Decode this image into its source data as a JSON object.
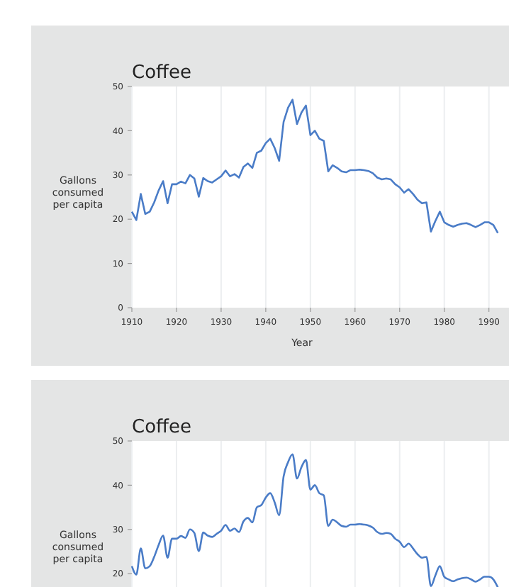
{
  "chart_data": [
    {
      "type": "line",
      "title": "Coffee",
      "xlabel": "Year",
      "ylabel": "Gallons consumed per capita",
      "xlim": [
        1910,
        1994.5
      ],
      "xticks": [
        1910,
        1920,
        1930,
        1940,
        1950,
        1960,
        1970,
        1980,
        1990
      ],
      "ylim": [
        0,
        50
      ],
      "yticks": [
        0,
        10,
        20,
        30,
        40,
        50
      ],
      "grid": "x",
      "x": [
        1910,
        1911,
        1912,
        1913,
        1914,
        1915,
        1916,
        1917,
        1918,
        1919,
        1920,
        1921,
        1922,
        1923,
        1924,
        1925,
        1926,
        1927,
        1928,
        1929,
        1930,
        1931,
        1932,
        1933,
        1934,
        1935,
        1936,
        1937,
        1938,
        1939,
        1940,
        1941,
        1942,
        1943,
        1944,
        1945,
        1946,
        1947,
        1948,
        1949,
        1950,
        1951,
        1952,
        1953,
        1954,
        1955,
        1956,
        1957,
        1958,
        1959,
        1960,
        1961,
        1962,
        1963,
        1964,
        1965,
        1966,
        1967,
        1968,
        1969,
        1970,
        1971,
        1972,
        1973,
        1974,
        1975,
        1976,
        1977,
        1978,
        1979,
        1980,
        1981,
        1982,
        1983,
        1984,
        1985,
        1986,
        1987,
        1988,
        1989,
        1990,
        1991,
        1992
      ],
      "series": [
        {
          "color": "#4a7cc7",
          "values": [
            21.7,
            19.8,
            25.7,
            21.2,
            21.7,
            23.8,
            26.5,
            28.6,
            23.6,
            27.9,
            27.9,
            28.5,
            28.1,
            30.0,
            29.2,
            25.1,
            29.3,
            28.6,
            28.3,
            29.0,
            29.7,
            31.0,
            29.7,
            30.2,
            29.4,
            31.8,
            32.6,
            31.6,
            35.0,
            35.5,
            37.2,
            38.2,
            36.1,
            33.2,
            42.0,
            45.2,
            47.0,
            41.5,
            44.1,
            45.7,
            39.0,
            40.0,
            38.2,
            37.7,
            30.8,
            32.2,
            31.6,
            30.8,
            30.6,
            31.1,
            31.1,
            31.2,
            31.1,
            30.9,
            30.4,
            29.4,
            29.0,
            29.2,
            29.0,
            27.9,
            27.2,
            26.0,
            26.8,
            25.7,
            24.4,
            23.6,
            23.8,
            17.2,
            19.6,
            21.7,
            19.3,
            18.7,
            18.3,
            18.7,
            19.0,
            19.1,
            18.7,
            18.2,
            18.7,
            19.3,
            19.3,
            18.7,
            16.9
          ]
        }
      ]
    },
    {
      "type": "line",
      "title": "Coffee",
      "ylabel": "Gallons consumed per capita",
      "xlim": [
        1910,
        1994.5
      ],
      "ylim": [
        0,
        50
      ],
      "yticks": [
        20,
        30,
        40,
        50
      ],
      "grid": "x",
      "tick_labels": "y",
      "x": [
        1910,
        1911,
        1912,
        1913,
        1914,
        1915,
        1916,
        1917,
        1918,
        1919,
        1920,
        1921,
        1922,
        1923,
        1924,
        1925,
        1926,
        1927,
        1928,
        1929,
        1930,
        1931,
        1932,
        1933,
        1934,
        1935,
        1936,
        1937,
        1938,
        1939,
        1940,
        1941,
        1942,
        1943,
        1944,
        1945,
        1946,
        1947,
        1948,
        1949,
        1950,
        1951,
        1952,
        1953,
        1954,
        1955,
        1956,
        1957,
        1958,
        1959,
        1960,
        1961,
        1962,
        1963,
        1964,
        1965,
        1966,
        1967,
        1968,
        1969,
        1970,
        1971,
        1972,
        1973,
        1974,
        1975,
        1976,
        1977,
        1978,
        1979,
        1980,
        1981,
        1982,
        1983,
        1984,
        1985,
        1986,
        1987,
        1988,
        1989,
        1990,
        1991,
        1992
      ],
      "series": [
        {
          "color": "#4a7cc7",
          "values": [
            21.7,
            19.8,
            25.7,
            21.2,
            21.7,
            23.8,
            26.5,
            28.6,
            23.6,
            27.9,
            27.9,
            28.5,
            28.1,
            30.0,
            29.2,
            25.1,
            29.3,
            28.6,
            28.3,
            29.0,
            29.7,
            31.0,
            29.7,
            30.2,
            29.4,
            31.8,
            32.6,
            31.6,
            35.0,
            35.5,
            37.2,
            38.2,
            36.1,
            33.2,
            42.0,
            45.2,
            47.0,
            41.5,
            44.1,
            45.7,
            39.0,
            40.0,
            38.2,
            37.7,
            30.8,
            32.2,
            31.6,
            30.8,
            30.6,
            31.1,
            31.1,
            31.2,
            31.1,
            30.9,
            30.4,
            29.4,
            29.0,
            29.2,
            29.0,
            27.9,
            27.2,
            26.0,
            26.8,
            25.7,
            24.4,
            23.6,
            23.8,
            17.2,
            19.6,
            21.7,
            19.3,
            18.7,
            18.3,
            18.7,
            19.0,
            19.1,
            18.7,
            18.2,
            18.7,
            19.3,
            19.3,
            18.7,
            16.9
          ]
        }
      ]
    }
  ]
}
